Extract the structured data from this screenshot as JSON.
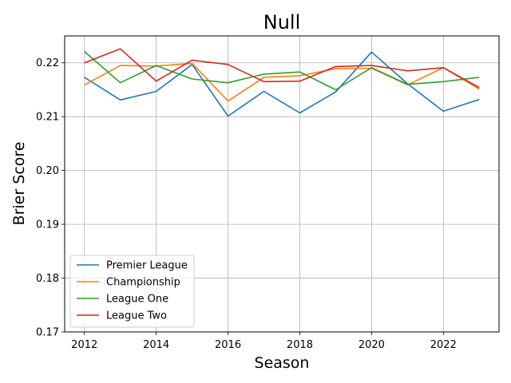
{
  "chart_data": {
    "type": "line",
    "title": "Null",
    "xlabel": "Season",
    "ylabel": "Brier Score",
    "x": [
      2012,
      2013,
      2014,
      2015,
      2016,
      2017,
      2018,
      2019,
      2020,
      2021,
      2022,
      2023
    ],
    "xlim": [
      2011.45,
      2023.55
    ],
    "ylim": [
      0.17,
      0.225
    ],
    "xticks": [
      2012,
      2014,
      2016,
      2018,
      2020,
      2022
    ],
    "yticks": [
      0.17,
      0.18,
      0.19,
      0.2,
      0.21,
      0.22
    ],
    "ytick_labels": [
      "0.17",
      "0.18",
      "0.19",
      "0.20",
      "0.21",
      "0.22"
    ],
    "grid": true,
    "legend_position": "lower-left",
    "series": [
      {
        "name": "Premier League",
        "color": "#1f77b4",
        "values": [
          0.2173,
          0.2131,
          0.2147,
          0.2197,
          0.2101,
          0.2147,
          0.2107,
          0.2146,
          0.222,
          0.2161,
          0.211,
          0.2132
        ]
      },
      {
        "name": "Championship",
        "color": "#ff7f0e",
        "values": [
          0.2159,
          0.2195,
          0.2194,
          0.2199,
          0.2129,
          0.2173,
          0.2176,
          0.2189,
          0.219,
          0.2159,
          0.2191,
          0.2151
        ]
      },
      {
        "name": "League One",
        "color": "#2ca02c",
        "values": [
          0.2221,
          0.2163,
          0.2195,
          0.217,
          0.2163,
          0.2179,
          0.2183,
          0.215,
          0.2191,
          0.216,
          0.2165,
          0.2173
        ]
      },
      {
        "name": "League Two",
        "color": "#d62728",
        "values": [
          0.22,
          0.2226,
          0.2166,
          0.2205,
          0.2197,
          0.2165,
          0.2166,
          0.2193,
          0.2195,
          0.2185,
          0.2191,
          0.2154
        ]
      }
    ]
  }
}
